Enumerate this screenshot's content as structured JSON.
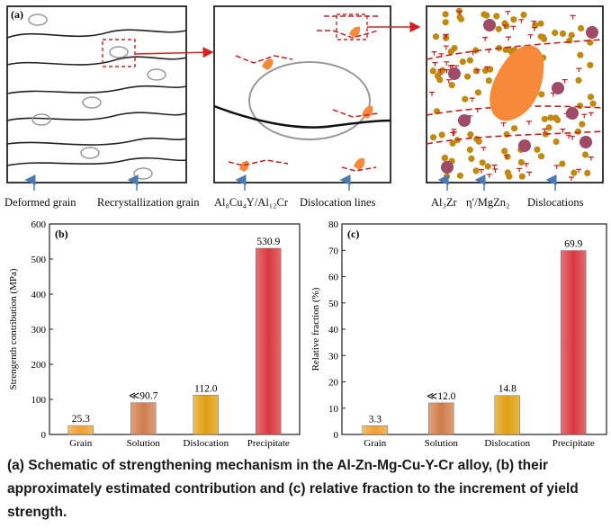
{
  "schematic": {
    "panel_label": "(a)",
    "labels": {
      "deformed_grain": "Deformed grain",
      "recrystallization_grain": "Recrystallization grain",
      "phase_al8cu4y": "Al₈Cu₄Y/Al₁₂Cr",
      "dislocation_lines": "Dislocation lines",
      "al3zr": "Al₃Zr",
      "eta_mgzn2": "η′/MgZn₂",
      "dislocations": "Dislocations"
    },
    "colors": {
      "precipitate": "#f78a3a",
      "dislocation": "#c81e1e",
      "al3zr": "#9e4a68",
      "eta": "#c08a12",
      "arrow": "#4a7ab5"
    }
  },
  "chart_data": [
    {
      "type": "bar",
      "panel_label": "(b)",
      "categories": [
        "Grain",
        "Solution",
        "Dislocation",
        "Precipitate"
      ],
      "values": [
        25.3,
        90.7,
        112.0,
        530.9
      ],
      "value_labels": [
        "25.3",
        "≪90.7",
        "112.0",
        "530.9"
      ],
      "ylabel": "Strengenth contribution (MPa)",
      "ylim": [
        0,
        600
      ],
      "yticks": [
        0,
        100,
        200,
        300,
        400,
        500,
        600
      ],
      "colors": [
        "#f0a030",
        "#d07c4a",
        "#e0a010",
        "#d8383e"
      ]
    },
    {
      "type": "bar",
      "panel_label": "(c)",
      "categories": [
        "Grain",
        "Solution",
        "Dislocation",
        "Precipitate"
      ],
      "values": [
        3.3,
        12.0,
        14.8,
        69.9
      ],
      "value_labels": [
        "3.3",
        "≪12.0",
        "14.8",
        "69.9"
      ],
      "ylabel": "Relative fraction (%)",
      "ylim": [
        0,
        80
      ],
      "yticks": [
        0,
        10,
        20,
        30,
        40,
        50,
        60,
        70,
        80
      ],
      "colors": [
        "#f0a030",
        "#d07c4a",
        "#e0a010",
        "#d8383e"
      ]
    }
  ],
  "caption": "(a) Schematic of strengthening mechanism in the Al-Zn-Mg-Cu-Y-Cr alloy, (b) their approximately estimated contribution and (c) relative fraction to the increment of yield strength."
}
